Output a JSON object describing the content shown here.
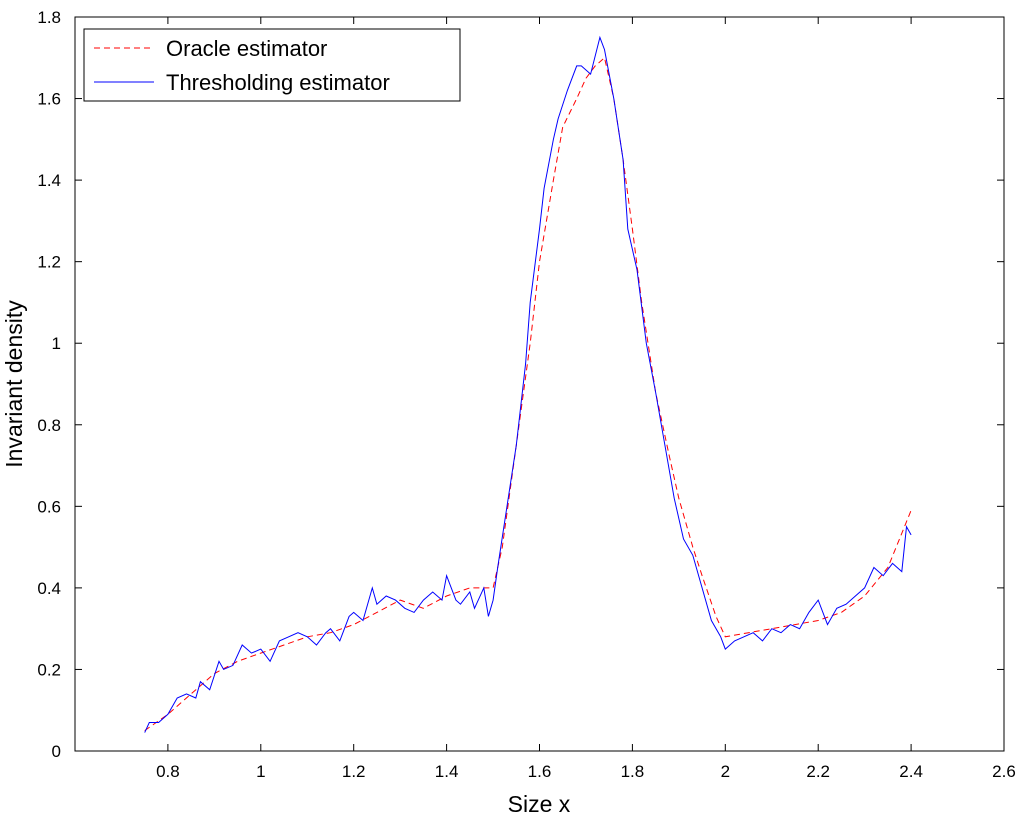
{
  "chart_data": {
    "type": "line",
    "xlabel": "Size x",
    "ylabel": "Invariant density",
    "xlim": [
      0.6,
      2.6
    ],
    "ylim": [
      0,
      1.8
    ],
    "xticks": [
      0.8,
      1,
      1.2,
      1.4,
      1.6,
      1.8,
      2,
      2.2,
      2.4,
      2.6
    ],
    "xtick_labels": [
      "0.8",
      "1",
      "1.2",
      "1.4",
      "1.6",
      "1.8",
      "2",
      "2.2",
      "2.4",
      "2.6"
    ],
    "yticks": [
      0,
      0.2,
      0.4,
      0.6,
      0.8,
      1,
      1.2,
      1.4,
      1.6,
      1.8
    ],
    "ytick_labels": [
      "0",
      "0.2",
      "0.4",
      "0.6",
      "0.8",
      "1",
      "1.2",
      "1.4",
      "1.6",
      "1.8"
    ],
    "grid": false,
    "legend_position": "top-left",
    "series": [
      {
        "name": "Oracle estimator",
        "color": "#ff0000",
        "style": "dashed",
        "x": [
          0.75,
          0.8,
          0.85,
          0.9,
          0.95,
          1.0,
          1.05,
          1.1,
          1.15,
          1.2,
          1.25,
          1.3,
          1.35,
          1.4,
          1.45,
          1.5,
          1.52,
          1.55,
          1.58,
          1.6,
          1.63,
          1.65,
          1.68,
          1.7,
          1.72,
          1.74,
          1.76,
          1.78,
          1.8,
          1.82,
          1.85,
          1.88,
          1.9,
          1.93,
          1.95,
          1.98,
          2.0,
          2.05,
          2.1,
          2.15,
          2.2,
          2.25,
          2.3,
          2.35,
          2.4
        ],
        "y": [
          0.05,
          0.09,
          0.14,
          0.19,
          0.22,
          0.24,
          0.26,
          0.28,
          0.29,
          0.31,
          0.34,
          0.37,
          0.35,
          0.38,
          0.4,
          0.4,
          0.5,
          0.75,
          1.0,
          1.2,
          1.4,
          1.53,
          1.6,
          1.65,
          1.68,
          1.7,
          1.6,
          1.45,
          1.28,
          1.1,
          0.88,
          0.72,
          0.62,
          0.5,
          0.43,
          0.33,
          0.28,
          0.29,
          0.3,
          0.31,
          0.32,
          0.34,
          0.38,
          0.45,
          0.59
        ]
      },
      {
        "name": "Thresholding estimator",
        "color": "#0000ff",
        "style": "solid",
        "x": [
          0.75,
          0.76,
          0.78,
          0.8,
          0.82,
          0.84,
          0.86,
          0.87,
          0.89,
          0.91,
          0.92,
          0.94,
          0.96,
          0.98,
          1.0,
          1.02,
          1.04,
          1.06,
          1.08,
          1.1,
          1.12,
          1.14,
          1.15,
          1.17,
          1.19,
          1.2,
          1.22,
          1.24,
          1.25,
          1.27,
          1.29,
          1.31,
          1.33,
          1.35,
          1.37,
          1.39,
          1.4,
          1.42,
          1.43,
          1.45,
          1.46,
          1.48,
          1.49,
          1.5,
          1.51,
          1.53,
          1.55,
          1.57,
          1.58,
          1.6,
          1.61,
          1.63,
          1.64,
          1.66,
          1.68,
          1.69,
          1.71,
          1.73,
          1.74,
          1.76,
          1.78,
          1.79,
          1.81,
          1.83,
          1.85,
          1.87,
          1.89,
          1.91,
          1.93,
          1.95,
          1.97,
          1.99,
          2.0,
          2.02,
          2.04,
          2.06,
          2.08,
          2.1,
          2.12,
          2.14,
          2.16,
          2.18,
          2.2,
          2.22,
          2.24,
          2.26,
          2.28,
          2.3,
          2.32,
          2.34,
          2.36,
          2.38,
          2.39,
          2.4
        ],
        "y": [
          0.045,
          0.07,
          0.07,
          0.09,
          0.13,
          0.14,
          0.13,
          0.17,
          0.15,
          0.22,
          0.2,
          0.21,
          0.26,
          0.24,
          0.25,
          0.22,
          0.27,
          0.28,
          0.29,
          0.28,
          0.26,
          0.29,
          0.3,
          0.27,
          0.33,
          0.34,
          0.32,
          0.4,
          0.36,
          0.38,
          0.37,
          0.35,
          0.34,
          0.37,
          0.39,
          0.37,
          0.43,
          0.37,
          0.36,
          0.39,
          0.35,
          0.4,
          0.33,
          0.37,
          0.45,
          0.6,
          0.75,
          0.95,
          1.1,
          1.28,
          1.38,
          1.5,
          1.55,
          1.62,
          1.68,
          1.68,
          1.66,
          1.75,
          1.72,
          1.6,
          1.45,
          1.28,
          1.18,
          1.0,
          0.88,
          0.75,
          0.62,
          0.52,
          0.48,
          0.4,
          0.32,
          0.28,
          0.25,
          0.27,
          0.28,
          0.29,
          0.27,
          0.3,
          0.29,
          0.31,
          0.3,
          0.34,
          0.37,
          0.31,
          0.35,
          0.36,
          0.38,
          0.4,
          0.45,
          0.43,
          0.46,
          0.44,
          0.55,
          0.53
        ]
      }
    ]
  }
}
